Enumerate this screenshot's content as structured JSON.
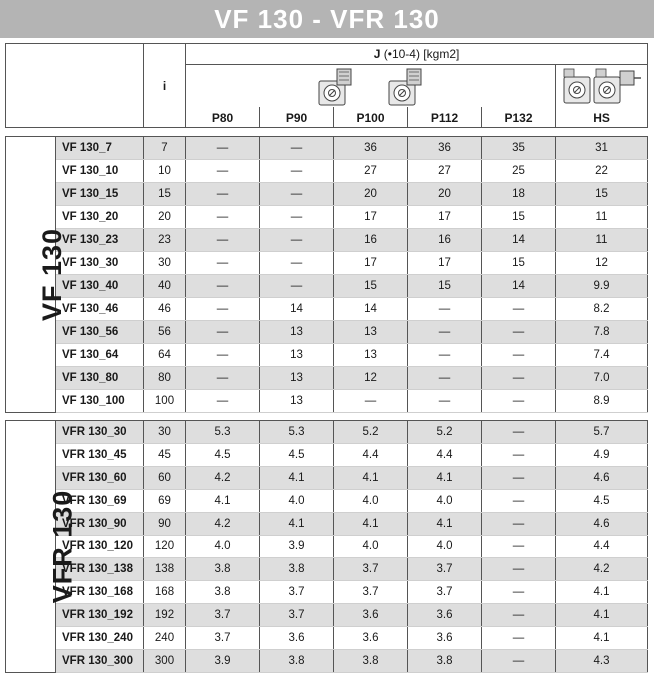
{
  "title": "VF 130 - VFR 130",
  "header": {
    "ratio_label": "i",
    "j_label": "J",
    "j_units": "(•10-4) [kgm2]",
    "columns": [
      "P80",
      "P90",
      "P100",
      "P112",
      "P132",
      "HS"
    ]
  },
  "icons": [
    "worm-gear-motor-icon",
    "worm-gear-motor-icon",
    "double-reducer-icon"
  ],
  "groups": [
    {
      "label": "VF 130",
      "rows": [
        {
          "model": "VF 130_7",
          "i": "7",
          "v": [
            "—",
            "—",
            "36",
            "36",
            "35",
            "31"
          ]
        },
        {
          "model": "VF 130_10",
          "i": "10",
          "v": [
            "—",
            "—",
            "27",
            "27",
            "25",
            "22"
          ]
        },
        {
          "model": "VF 130_15",
          "i": "15",
          "v": [
            "—",
            "—",
            "20",
            "20",
            "18",
            "15"
          ]
        },
        {
          "model": "VF 130_20",
          "i": "20",
          "v": [
            "—",
            "—",
            "17",
            "17",
            "15",
            "11"
          ]
        },
        {
          "model": "VF 130_23",
          "i": "23",
          "v": [
            "—",
            "—",
            "16",
            "16",
            "14",
            "11"
          ]
        },
        {
          "model": "VF 130_30",
          "i": "30",
          "v": [
            "—",
            "—",
            "17",
            "17",
            "15",
            "12"
          ]
        },
        {
          "model": "VF 130_40",
          "i": "40",
          "v": [
            "—",
            "—",
            "15",
            "15",
            "14",
            "9.9"
          ]
        },
        {
          "model": "VF 130_46",
          "i": "46",
          "v": [
            "—",
            "14",
            "14",
            "—",
            "—",
            "8.2"
          ]
        },
        {
          "model": "VF 130_56",
          "i": "56",
          "v": [
            "—",
            "13",
            "13",
            "—",
            "—",
            "7.8"
          ]
        },
        {
          "model": "VF 130_64",
          "i": "64",
          "v": [
            "—",
            "13",
            "13",
            "—",
            "—",
            "7.4"
          ]
        },
        {
          "model": "VF 130_80",
          "i": "80",
          "v": [
            "—",
            "13",
            "12",
            "—",
            "—",
            "7.0"
          ]
        },
        {
          "model": "VF 130_100",
          "i": "100",
          "v": [
            "—",
            "13",
            "—",
            "—",
            "—",
            "8.9"
          ]
        }
      ]
    },
    {
      "label": "VFR 130",
      "rows": [
        {
          "model": "VFR 130_30",
          "i": "30",
          "v": [
            "5.3",
            "5.3",
            "5.2",
            "5.2",
            "—",
            "5.7"
          ]
        },
        {
          "model": "VFR 130_45",
          "i": "45",
          "v": [
            "4.5",
            "4.5",
            "4.4",
            "4.4",
            "—",
            "4.9"
          ]
        },
        {
          "model": "VFR 130_60",
          "i": "60",
          "v": [
            "4.2",
            "4.1",
            "4.1",
            "4.1",
            "—",
            "4.6"
          ]
        },
        {
          "model": "VFR 130_69",
          "i": "69",
          "v": [
            "4.1",
            "4.0",
            "4.0",
            "4.0",
            "—",
            "4.5"
          ]
        },
        {
          "model": "VFR 130_90",
          "i": "90",
          "v": [
            "4.2",
            "4.1",
            "4.1",
            "4.1",
            "—",
            "4.6"
          ]
        },
        {
          "model": "VFR 130_120",
          "i": "120",
          "v": [
            "4.0",
            "3.9",
            "4.0",
            "4.0",
            "—",
            "4.4"
          ]
        },
        {
          "model": "VFR 130_138",
          "i": "138",
          "v": [
            "3.8",
            "3.8",
            "3.7",
            "3.7",
            "—",
            "4.2"
          ]
        },
        {
          "model": "VFR 130_168",
          "i": "168",
          "v": [
            "3.8",
            "3.7",
            "3.7",
            "3.7",
            "—",
            "4.1"
          ]
        },
        {
          "model": "VFR 130_192",
          "i": "192",
          "v": [
            "3.7",
            "3.7",
            "3.6",
            "3.6",
            "—",
            "4.1"
          ]
        },
        {
          "model": "VFR 130_240",
          "i": "240",
          "v": [
            "3.7",
            "3.6",
            "3.6",
            "3.6",
            "—",
            "4.1"
          ]
        },
        {
          "model": "VFR 130_300",
          "i": "300",
          "v": [
            "3.9",
            "3.8",
            "3.8",
            "3.8",
            "—",
            "4.3"
          ]
        }
      ]
    }
  ]
}
